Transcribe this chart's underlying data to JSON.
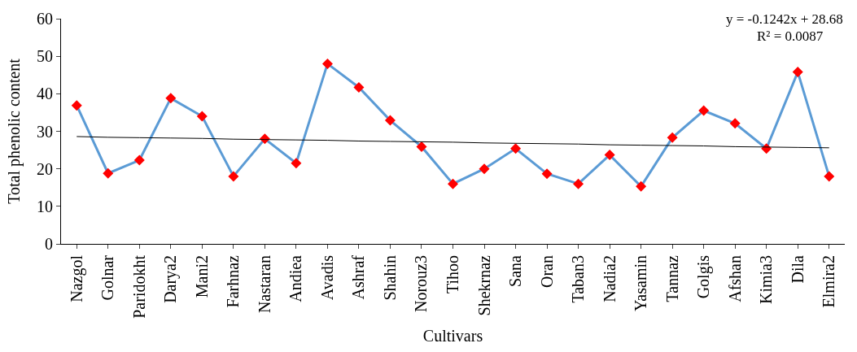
{
  "chart_data": {
    "type": "line",
    "xlabel": "Cultivars",
    "ylabel": "Total phenolic content",
    "categories": [
      "Nazgol",
      "Golnar",
      "Paridokht",
      "Darya2",
      "Mani2",
      "Farhnaz",
      "Nastaran",
      "Andiea",
      "Avadis",
      "Ashraf",
      "Shahin",
      "Norouz3",
      "Tihoo",
      "Shekrnaz",
      "Sana",
      "Oran",
      "Taban3",
      "Nadia2",
      "Yasamin",
      "Tannaz",
      "Golgis",
      "Afshan",
      "Kimia3",
      "Dila",
      "Elmira2"
    ],
    "series": [
      {
        "color": "#5b9bd5",
        "marker": "none",
        "values": [
          36.9,
          18.8,
          22.3,
          38.8,
          34,
          18,
          28,
          21.5,
          48,
          41.7,
          32.9,
          25.9,
          16,
          20,
          25.4,
          18.7,
          16,
          23.7,
          15.3,
          28.3,
          35.5,
          32.1,
          25.4,
          45.8,
          18
        ]
      },
      {
        "type": "scatter",
        "color": "#ff0000",
        "marker": "diamond",
        "values": [
          36.9,
          18.8,
          22.3,
          38.8,
          34,
          18,
          28,
          21.5,
          48,
          41.7,
          32.9,
          25.9,
          16,
          20,
          25.4,
          18.7,
          16,
          23.7,
          15.3,
          28.3,
          35.5,
          32.1,
          25.4,
          45.8,
          18
        ]
      },
      {
        "type": "line",
        "color": "#000000",
        "marker": "none",
        "values": [
          28.6,
          28.4,
          28.3,
          28.2,
          28.1,
          27.9,
          27.8,
          27.7,
          27.6,
          27.4,
          27.3,
          27.2,
          27.1,
          26.9,
          26.8,
          26.7,
          26.6,
          26.4,
          26.3,
          26.2,
          26.1,
          25.9,
          25.8,
          25.7,
          25.6
        ]
      }
    ],
    "ylim": [
      0,
      60
    ],
    "yticks": [
      0,
      10,
      20,
      30,
      40,
      50,
      60
    ],
    "annotations": [
      "y = -0.1242x + 28.68",
      "R² = 0.0087"
    ]
  }
}
